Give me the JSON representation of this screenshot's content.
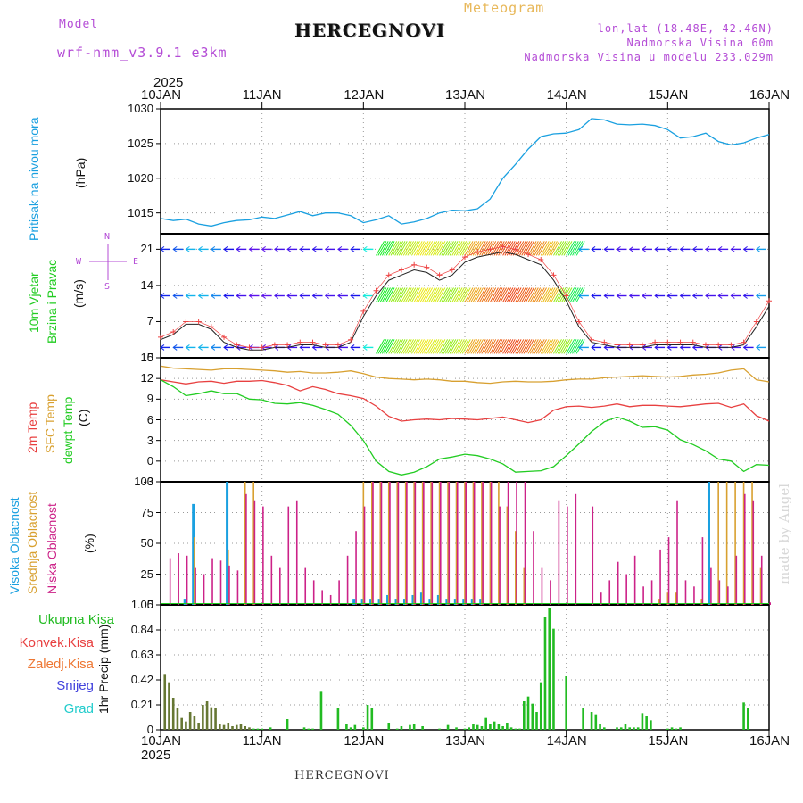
{
  "header": {
    "model_label": "Model",
    "model_name": "wrf-nmm_v3.9.1 e3km",
    "title": "HERCEGNOVI",
    "meteogram_label": "Meteogram",
    "coords": "lon,lat (18.48E, 42.46N)",
    "altitude": "Nadmorska Visina 60m",
    "model_altitude": "Nadmorska Visina u modelu 233.029m"
  },
  "year": "2025",
  "day_labels": [
    "10JAN",
    "11JAN",
    "12JAN",
    "13JAN",
    "14JAN",
    "15JAN",
    "16JAN"
  ],
  "watermark": "made by Angel",
  "footer": "HERCEGNOVI",
  "colors": {
    "pressure": "#1aa0e0",
    "temp2m": "#e84040",
    "sfc_temp": "#d8a030",
    "dewpt": "#22cc22",
    "high_cloud": "#1aa0e0",
    "mid_cloud": "#d8a030",
    "low_cloud": "#cc2288",
    "total_precip": "#22bb22",
    "conv_precip": "#e84040",
    "ice_precip": "#ee7733",
    "snow": "#4444dd",
    "graupel": "#22cccc"
  },
  "chart_data": [
    {
      "type": "line",
      "name": "pressure",
      "title": "Pritisak na nivou mora",
      "unit_label": "(hPa)",
      "ylim": [
        1012,
        1030
      ],
      "yticks": [
        1015,
        1020,
        1025,
        1030
      ],
      "x_hours": [
        0,
        3,
        6,
        9,
        12,
        15,
        18,
        21,
        24,
        27,
        30,
        33,
        36,
        39,
        42,
        45,
        48,
        51,
        54,
        57,
        60,
        63,
        66,
        69,
        72,
        75,
        78,
        81,
        84,
        87,
        90,
        93,
        96,
        99,
        102,
        105,
        108,
        111,
        114,
        117,
        120,
        123,
        126,
        129,
        132,
        135,
        138,
        141,
        144
      ],
      "values": [
        1014.2,
        1013.9,
        1014.1,
        1013.4,
        1013.1,
        1013.6,
        1013.9,
        1014.0,
        1014.4,
        1014.2,
        1014.7,
        1015.2,
        1014.6,
        1015.0,
        1015.0,
        1014.6,
        1013.6,
        1014.0,
        1014.6,
        1013.4,
        1013.7,
        1014.2,
        1015.0,
        1015.4,
        1015.3,
        1015.6,
        1017.0,
        1020.0,
        1022.0,
        1024.2,
        1026.0,
        1026.4,
        1026.5,
        1027.0,
        1028.6,
        1028.4,
        1027.8,
        1027.7,
        1027.8,
        1027.6,
        1027.0,
        1025.8,
        1026.0,
        1026.5,
        1025.3,
        1024.8,
        1025.1,
        1025.8,
        1026.3
      ]
    },
    {
      "type": "line",
      "name": "wind",
      "title": "10m Vjetar Brzina i Pravac",
      "unit_label": "(m/s)",
      "compass": {
        "n": "N",
        "s": "S",
        "e": "E",
        "w": "W"
      },
      "ylim": [
        0,
        24
      ],
      "yticks": [
        0,
        7,
        14,
        21
      ],
      "x_hours": [
        0,
        3,
        6,
        9,
        12,
        15,
        18,
        21,
        24,
        27,
        30,
        33,
        36,
        39,
        42,
        45,
        48,
        51,
        54,
        57,
        60,
        63,
        66,
        69,
        72,
        75,
        78,
        81,
        84,
        87,
        90,
        93,
        96,
        99,
        102,
        105,
        108,
        111,
        114,
        117,
        120,
        123,
        126,
        129,
        132,
        135,
        138,
        141,
        144
      ],
      "series": [
        {
          "name": "speed",
          "values": [
            3.5,
            4.5,
            6.5,
            6.5,
            5.5,
            3,
            2,
            1.5,
            1.5,
            2,
            2,
            2.5,
            2.5,
            2,
            2,
            3,
            8,
            12,
            15,
            16,
            17,
            16.5,
            15,
            16,
            18.5,
            19.5,
            20,
            20.5,
            20,
            19,
            18,
            15,
            11,
            6,
            3,
            2.5,
            2,
            2,
            2,
            2.5,
            2.5,
            2.5,
            2.5,
            2,
            2,
            2,
            2.5,
            6,
            10
          ]
        },
        {
          "name": "gust",
          "values": [
            4,
            5,
            7,
            7,
            6,
            4,
            2.5,
            2,
            2,
            2.5,
            2.5,
            3,
            3,
            2.5,
            2.5,
            3.5,
            9,
            13,
            16,
            17,
            18,
            17.5,
            16,
            17,
            19.5,
            20.5,
            21,
            21.5,
            21,
            20,
            19,
            16,
            12,
            7,
            3.5,
            3,
            2.5,
            2.5,
            2.5,
            3,
            3,
            3,
            3,
            2.5,
            2.5,
            2.5,
            3,
            7,
            11
          ]
        }
      ]
    },
    {
      "type": "line",
      "name": "temperature",
      "title_2m": "2m Temp",
      "title_sfc": "SFC Temp",
      "title_dew": "dewpt Temp",
      "unit_label": "(C)",
      "ylim": [
        -3,
        15
      ],
      "yticks": [
        -3,
        0,
        3,
        6,
        9,
        12,
        15
      ],
      "x_hours": [
        0,
        3,
        6,
        9,
        12,
        15,
        18,
        21,
        24,
        27,
        30,
        33,
        36,
        39,
        42,
        45,
        48,
        51,
        54,
        57,
        60,
        63,
        66,
        69,
        72,
        75,
        78,
        81,
        84,
        87,
        90,
        93,
        96,
        99,
        102,
        105,
        108,
        111,
        114,
        117,
        120,
        123,
        126,
        129,
        132,
        135,
        138,
        141,
        144
      ],
      "series": [
        {
          "name": "2m Temp",
          "values": [
            11.8,
            11.5,
            11.2,
            11.5,
            11.6,
            11.3,
            11.6,
            11.6,
            11.7,
            11.4,
            11.0,
            10.2,
            10.8,
            10.4,
            9.8,
            9.5,
            9.1,
            8.0,
            6.5,
            5.8,
            6.0,
            6.1,
            6.0,
            6.2,
            6.1,
            6.0,
            6.2,
            6.4,
            6.0,
            5.6,
            6.0,
            7.4,
            7.9,
            8.0,
            7.8,
            8.0,
            8.3,
            7.9,
            8.1,
            8.1,
            8.0,
            7.9,
            8.1,
            8.3,
            8.4,
            7.8,
            8.3,
            6.6,
            5.8
          ]
        },
        {
          "name": "SFC Temp",
          "values": [
            13.8,
            13.5,
            13.4,
            13.3,
            13.2,
            13.4,
            13.4,
            13.3,
            13.2,
            13.1,
            12.9,
            13.0,
            12.8,
            12.8,
            12.9,
            13.1,
            12.7,
            12.2,
            12.0,
            11.9,
            11.8,
            11.9,
            11.8,
            11.6,
            11.6,
            11.4,
            11.3,
            11.5,
            11.6,
            11.5,
            11.5,
            11.6,
            11.8,
            11.9,
            11.9,
            12.1,
            12.2,
            12.3,
            12.4,
            12.3,
            12.2,
            12.3,
            12.5,
            12.6,
            12.8,
            13.2,
            13.4,
            11.8,
            11.5
          ]
        },
        {
          "name": "dewpt Temp",
          "values": [
            11.8,
            10.8,
            9.5,
            9.8,
            10.2,
            9.8,
            9.8,
            9.0,
            8.9,
            8.4,
            8.3,
            8.5,
            8.1,
            7.5,
            6.8,
            5.2,
            3.0,
            0.0,
            -1.5,
            -2.0,
            -1.6,
            -0.8,
            0.3,
            0.6,
            1.0,
            0.8,
            0.3,
            -0.4,
            -1.6,
            -1.5,
            -1.4,
            -0.8,
            0.8,
            2.5,
            4.3,
            5.7,
            6.4,
            5.8,
            4.9,
            5.0,
            4.5,
            3.1,
            2.4,
            1.5,
            0.3,
            0.0,
            -1.5,
            -0.5,
            -0.6
          ]
        }
      ]
    },
    {
      "type": "bar",
      "name": "cloud_cover",
      "title_high": "Visoka Oblacnost",
      "title_mid": "Srednja Oblacnost",
      "title_low": "Niska Oblacnost",
      "unit_label": "(%)",
      "ylim": [
        0,
        100
      ],
      "yticks": [
        0,
        25,
        50,
        75,
        100
      ],
      "x_hours": [
        2,
        4,
        6,
        8,
        10,
        12,
        14,
        16,
        18,
        20,
        22,
        24,
        26,
        28,
        30,
        32,
        34,
        36,
        38,
        40,
        42,
        44,
        46,
        48,
        50,
        52,
        54,
        56,
        58,
        60,
        62,
        64,
        66,
        68,
        70,
        72,
        74,
        76,
        78,
        80,
        82,
        84,
        86,
        88,
        90,
        92,
        94,
        96,
        98,
        100,
        102,
        104,
        106,
        108,
        110,
        112,
        114,
        116,
        118,
        120,
        122,
        124,
        126,
        128,
        130,
        132,
        134,
        136,
        138,
        140,
        142,
        144
      ],
      "series": [
        {
          "name": "high",
          "values": [
            0,
            0,
            5,
            82,
            0,
            0,
            0,
            100,
            0,
            0,
            0,
            0,
            0,
            0,
            0,
            0,
            0,
            0,
            0,
            0,
            0,
            0,
            5,
            5,
            5,
            5,
            8,
            5,
            5,
            8,
            10,
            5,
            8,
            5,
            5,
            5,
            5,
            5,
            0,
            0,
            0,
            0,
            0,
            0,
            0,
            0,
            0,
            0,
            0,
            0,
            0,
            0,
            0,
            0,
            0,
            0,
            0,
            0,
            0,
            0,
            0,
            0,
            0,
            0,
            100,
            0,
            0,
            0,
            0,
            0,
            0,
            0
          ]
        },
        {
          "name": "mid",
          "values": [
            0,
            0,
            0,
            55,
            0,
            0,
            0,
            45,
            0,
            100,
            100,
            0,
            0,
            0,
            0,
            0,
            0,
            0,
            0,
            0,
            0,
            0,
            0,
            100,
            100,
            100,
            100,
            100,
            100,
            100,
            100,
            100,
            100,
            100,
            100,
            100,
            100,
            100,
            100,
            100,
            80,
            60,
            30,
            0,
            0,
            0,
            0,
            0,
            0,
            0,
            0,
            0,
            0,
            0,
            0,
            0,
            0,
            0,
            5,
            10,
            10,
            0,
            0,
            5,
            0,
            100,
            100,
            100,
            100,
            100,
            30,
            0
          ]
        },
        {
          "name": "low",
          "values": [
            38,
            42,
            40,
            30,
            25,
            38,
            36,
            32,
            28,
            90,
            85,
            80,
            40,
            30,
            80,
            85,
            30,
            20,
            12,
            8,
            20,
            40,
            60,
            80,
            100,
            100,
            100,
            100,
            100,
            100,
            100,
            100,
            100,
            100,
            100,
            100,
            100,
            100,
            100,
            80,
            100,
            100,
            100,
            60,
            30,
            20,
            85,
            80,
            90,
            0,
            80,
            10,
            20,
            35,
            25,
            40,
            15,
            20,
            45,
            55,
            85,
            20,
            15,
            55,
            30,
            20,
            15,
            40,
            90,
            85,
            40,
            2
          ]
        }
      ]
    },
    {
      "type": "bar",
      "name": "precipitation",
      "unit_label": "1hr Precip (mm)",
      "legend": [
        "Ukupna Kisa",
        "Konvek.Kisa",
        "Zaledj.Kisa",
        "Snijeg",
        "Grad"
      ],
      "ylim": [
        0,
        1.05
      ],
      "yticks": [
        0,
        0.21,
        0.42,
        0.63,
        0.84,
        1.05
      ],
      "x_hours": [
        1,
        2,
        3,
        4,
        5,
        6,
        7,
        8,
        9,
        10,
        11,
        12,
        13,
        14,
        15,
        16,
        17,
        18,
        19,
        20,
        21,
        22,
        23,
        24,
        26,
        30,
        34,
        35,
        36,
        38,
        42,
        44,
        45,
        46,
        48,
        49,
        50,
        54,
        56,
        57,
        59,
        60,
        62,
        66,
        68,
        70,
        72,
        73,
        74,
        75,
        76,
        77,
        78,
        79,
        80,
        81,
        82,
        83,
        84,
        85,
        86,
        87,
        88,
        89,
        90,
        91,
        92,
        93,
        96,
        100,
        102,
        103,
        104,
        105,
        108,
        109,
        110,
        111,
        112,
        113,
        114,
        115,
        116,
        120,
        121,
        122,
        123,
        138,
        139
      ],
      "series": [
        {
          "name": "Ukupna Kisa",
          "values": [
            0.47,
            0.4,
            0.27,
            0.18,
            0.1,
            0.07,
            0.15,
            0.12,
            0.06,
            0.21,
            0.24,
            0.19,
            0.18,
            0.05,
            0.04,
            0.06,
            0.03,
            0.04,
            0.05,
            0.03,
            0.02,
            0.01,
            0.01,
            0.01,
            0.02,
            0.09,
            0.02,
            0.01,
            0.01,
            0.32,
            0.18,
            0.05,
            0.02,
            0.04,
            0.02,
            0.21,
            0.18,
            0.06,
            0.01,
            0.03,
            0.04,
            0.05,
            0.03,
            0.01,
            0.04,
            0.02,
            0.01,
            0.02,
            0.05,
            0.04,
            0.03,
            0.1,
            0.05,
            0.07,
            0.05,
            0.03,
            0.06,
            0.02,
            0.01,
            0.01,
            0.24,
            0.28,
            0.22,
            0.15,
            0.4,
            0.95,
            1.02,
            0.85,
            0.45,
            0.18,
            0.15,
            0.13,
            0.05,
            0.02,
            0.02,
            0.02,
            0.05,
            0.02,
            0.02,
            0.02,
            0.14,
            0.12,
            0.08,
            0.01,
            0.02,
            0.01,
            0.02,
            0.23,
            0.18
          ]
        },
        {
          "name": "Konvek.Kisa",
          "values": [
            0.45,
            0.38,
            0.26,
            0.17,
            0.1,
            0.07,
            0.14,
            0.11,
            0.06,
            0.2,
            0.23,
            0.18,
            0.17,
            0.05,
            0.04,
            0.06,
            0.03,
            0.04,
            0.05,
            0.03,
            0.02,
            0,
            0,
            0,
            0,
            0,
            0,
            0,
            0,
            0,
            0,
            0,
            0,
            0,
            0,
            0,
            0,
            0,
            0,
            0,
            0,
            0,
            0,
            0,
            0,
            0,
            0,
            0,
            0,
            0,
            0,
            0,
            0,
            0,
            0,
            0,
            0,
            0,
            0,
            0,
            0,
            0,
            0,
            0,
            0,
            0,
            0,
            0,
            0,
            0,
            0,
            0,
            0,
            0,
            0,
            0,
            0,
            0,
            0,
            0,
            0,
            0,
            0,
            0,
            0,
            0,
            0,
            0,
            0
          ]
        }
      ]
    }
  ]
}
